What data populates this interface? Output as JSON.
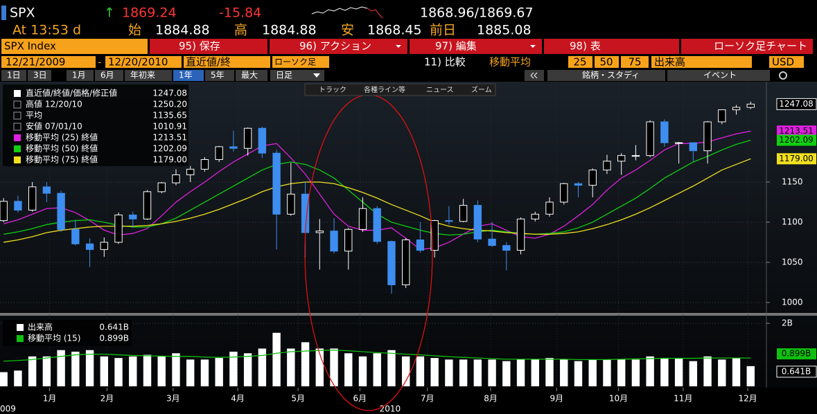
{
  "header": {
    "ticker": "SPX",
    "arrow": "↑",
    "last": "1869.24",
    "change": "-15.84",
    "bid_ask": "1868.96/1869.67",
    "time": "At 13:53 d",
    "open_label": "始",
    "open": "1884.88",
    "high_label": "高",
    "high": "1884.88",
    "low_label": "安",
    "low": "1868.45",
    "prev_label": "前日",
    "prev": "1885.08"
  },
  "menu": {
    "security": "SPX Index",
    "buttons": [
      "95) 保存",
      "96) アクション",
      "97) 編集",
      "98) 表"
    ],
    "chart_type": "ローソク足チャート"
  },
  "controls": {
    "start": "12/21/2009",
    "separator": "-",
    "end": "12/20/2010",
    "field": "直近値/終",
    "style": "ローソク足",
    "compare": "11) 比較",
    "ma": "移動平均",
    "periods": [
      "25",
      "50",
      "75"
    ],
    "volume": "出来高",
    "currency": "USD"
  },
  "ranges": [
    "1日",
    "3日",
    "1月",
    "6月",
    "年初来",
    "1年",
    "5年",
    "最大",
    "日足"
  ],
  "tools": [
    "銘柄・スタディ",
    "イベント"
  ],
  "chart_tools": [
    "トラック",
    "各種ライン等",
    "ニュース",
    "ズーム"
  ],
  "chart_data": [
    {
      "type": "candlestick",
      "xlim": [
        -0.25,
        53
      ],
      "xticks": [
        {
          "value": 3.2,
          "label": "1月"
        },
        {
          "value": 7.2,
          "label": "2月"
        },
        {
          "value": 11.8,
          "label": "3月"
        },
        {
          "value": 16.3,
          "label": "4月"
        },
        {
          "value": 20.5,
          "label": "5月"
        },
        {
          "value": 24.8,
          "label": "6月"
        },
        {
          "value": 29.5,
          "label": "7月"
        },
        {
          "value": 33.9,
          "label": "8月"
        },
        {
          "value": 38.5,
          "label": "9月"
        },
        {
          "value": 42.8,
          "label": "10月"
        },
        {
          "value": 47.3,
          "label": "11月"
        },
        {
          "value": 51.8,
          "label": "12月"
        }
      ],
      "year_labels": [
        "009",
        "2010"
      ],
      "ylim": [
        987,
        1275
      ],
      "yticks": [
        1000,
        1050,
        1100,
        1150
      ],
      "grid": true,
      "up_color": "#ffffff",
      "down_color": "#3d8ef0",
      "stats": [
        {
          "name": "直近値/終値/価格/修正値",
          "value": "1247.08"
        },
        {
          "name": "高値 12/20/10",
          "value": "1250.20"
        },
        {
          "name": "平均",
          "value": "1135.65"
        },
        {
          "name": "安値 07/01/10",
          "value": "1010.91"
        }
      ],
      "open": [
        1102,
        1126,
        1115,
        1144,
        1136,
        1091,
        1073,
        1066,
        1075,
        1109,
        1104,
        1138,
        1149,
        1159,
        1166,
        1178,
        1194,
        1192,
        1217,
        1186,
        1110,
        1135,
        1087,
        1089,
        1064,
        1091,
        1117,
        1076,
        1022,
        1078,
        1065,
        1102,
        1101,
        1121,
        1079,
        1071,
        1065,
        1104,
        1110,
        1125,
        1148,
        1146,
        1165,
        1176,
        1183,
        1183,
        1225,
        1199,
        1199,
        1189,
        1225,
        1240,
        1243
      ],
      "high": [
        1130,
        1133,
        1150,
        1150,
        1139,
        1103,
        1080,
        1081,
        1112,
        1113,
        1140,
        1150,
        1166,
        1170,
        1181,
        1195,
        1214,
        1218,
        1219,
        1190,
        1174,
        1150,
        1104,
        1105,
        1093,
        1131,
        1120,
        1077,
        1080,
        1100,
        1103,
        1120,
        1129,
        1127,
        1100,
        1075,
        1106,
        1113,
        1131,
        1149,
        1150,
        1167,
        1184,
        1186,
        1196,
        1227,
        1228,
        1200,
        1199,
        1226,
        1240,
        1246,
        1250.2
      ],
      "low": [
        1100,
        1112,
        1113,
        1125,
        1088,
        1071,
        1044,
        1057,
        1073,
        1093,
        1103,
        1136,
        1146,
        1150,
        1163,
        1175,
        1188,
        1183,
        1180,
        1066,
        1108,
        1056,
        1041,
        1061,
        1041,
        1088,
        1073,
        1010.91,
        1018,
        1062,
        1056,
        1097,
        1100,
        1075,
        1069,
        1040,
        1060,
        1101,
        1107,
        1122,
        1131,
        1131,
        1160,
        1159,
        1177,
        1181,
        1194,
        1173,
        1176,
        1173,
        1222,
        1234,
        1241
      ],
      "close": [
        1126,
        1115,
        1144,
        1136,
        1091,
        1073,
        1066,
        1075,
        1109,
        1104,
        1138,
        1149,
        1159,
        1166,
        1178,
        1194,
        1192,
        1217,
        1186,
        1110,
        1135,
        1087,
        1089,
        1064,
        1091,
        1117,
        1076,
        1022,
        1078,
        1065,
        1102,
        1101,
        1121,
        1079,
        1071,
        1065,
        1104,
        1110,
        1125,
        1148,
        1146,
        1165,
        1176,
        1183,
        1183,
        1225,
        1199,
        1199,
        1189,
        1225,
        1240,
        1243,
        1247.08
      ],
      "series": [
        {
          "name": "移動平均 (25) 終値",
          "color": "#e020e0",
          "last": "1213.51",
          "values": [
            1098,
            1103,
            1110,
            1117,
            1118,
            1112,
            1102,
            1090,
            1084,
            1086,
            1092,
            1108,
            1125,
            1138,
            1150,
            1163,
            1175,
            1185,
            1195,
            1198,
            1180,
            1160,
            1135,
            1110,
            1095,
            1090,
            1090,
            1093,
            1080,
            1066,
            1068,
            1075,
            1085,
            1095,
            1098,
            1090,
            1082,
            1080,
            1085,
            1095,
            1108,
            1122,
            1140,
            1155,
            1165,
            1177,
            1190,
            1198,
            1198,
            1200,
            1205,
            1210,
            1213.51
          ]
        },
        {
          "name": "移動平均 (50) 終値",
          "color": "#10d010",
          "last": "1202.09",
          "values": [
            1085,
            1088,
            1092,
            1097,
            1100,
            1102,
            1103,
            1100,
            1096,
            1094,
            1094,
            1098,
            1105,
            1115,
            1125,
            1135,
            1145,
            1155,
            1165,
            1172,
            1175,
            1172,
            1165,
            1155,
            1140,
            1125,
            1110,
            1100,
            1095,
            1090,
            1086,
            1084,
            1085,
            1088,
            1090,
            1088,
            1086,
            1085,
            1086,
            1088,
            1093,
            1100,
            1110,
            1120,
            1130,
            1142,
            1155,
            1165,
            1175,
            1182,
            1190,
            1197,
            1202.09
          ]
        },
        {
          "name": "移動平均 (75) 終値",
          "color": "#f0e020",
          "last": "1179.00",
          "values": [
            1075,
            1078,
            1082,
            1087,
            1090,
            1092,
            1094,
            1095,
            1095,
            1095,
            1096,
            1098,
            1101,
            1105,
            1110,
            1116,
            1123,
            1130,
            1138,
            1144,
            1148,
            1150,
            1150,
            1148,
            1143,
            1137,
            1130,
            1122,
            1115,
            1108,
            1100,
            1095,
            1092,
            1090,
            1089,
            1087,
            1086,
            1085,
            1085,
            1086,
            1088,
            1092,
            1097,
            1103,
            1110,
            1118,
            1127,
            1136,
            1145,
            1155,
            1165,
            1172,
            1179
          ]
        }
      ]
    },
    {
      "type": "bar",
      "ylim": [
        0,
        2.2
      ],
      "yticks": [
        {
          "value": 2,
          "label": "2B"
        }
      ],
      "series": [
        {
          "name": "出来高",
          "color": "#ffffff",
          "last": "0.641B",
          "values": [
            0.45,
            0.5,
            0.95,
            0.95,
            1.15,
            1.1,
            1.15,
            0.95,
            0.9,
            0.95,
            1.0,
            0.95,
            1.05,
            0.85,
            0.85,
            0.9,
            1.1,
            1.05,
            1.2,
            1.7,
            1.2,
            1.4,
            1.2,
            1.2,
            1.05,
            0.95,
            1.05,
            1.15,
            0.95,
            0.95,
            0.9,
            0.85,
            0.85,
            0.85,
            0.85,
            0.8,
            0.85,
            0.85,
            0.9,
            0.85,
            0.8,
            0.85,
            0.85,
            0.85,
            0.85,
            0.95,
            0.9,
            0.9,
            0.8,
            0.95,
            0.85,
            0.9,
            0.641
          ]
        },
        {
          "name": "移動平均 (15)",
          "color": "#10c010",
          "last": "0.899B",
          "values": [
            0.8,
            0.82,
            0.85,
            0.9,
            0.95,
            1.0,
            1.02,
            1.02,
            1.0,
            0.98,
            0.97,
            0.96,
            0.95,
            0.95,
            0.93,
            0.92,
            0.93,
            0.95,
            0.98,
            1.05,
            1.1,
            1.12,
            1.14,
            1.15,
            1.13,
            1.1,
            1.07,
            1.05,
            1.02,
            1.0,
            0.97,
            0.94,
            0.92,
            0.9,
            0.88,
            0.86,
            0.86,
            0.86,
            0.86,
            0.86,
            0.85,
            0.85,
            0.85,
            0.86,
            0.87,
            0.88,
            0.89,
            0.89,
            0.89,
            0.9,
            0.9,
            0.9,
            0.899
          ]
        }
      ]
    }
  ]
}
